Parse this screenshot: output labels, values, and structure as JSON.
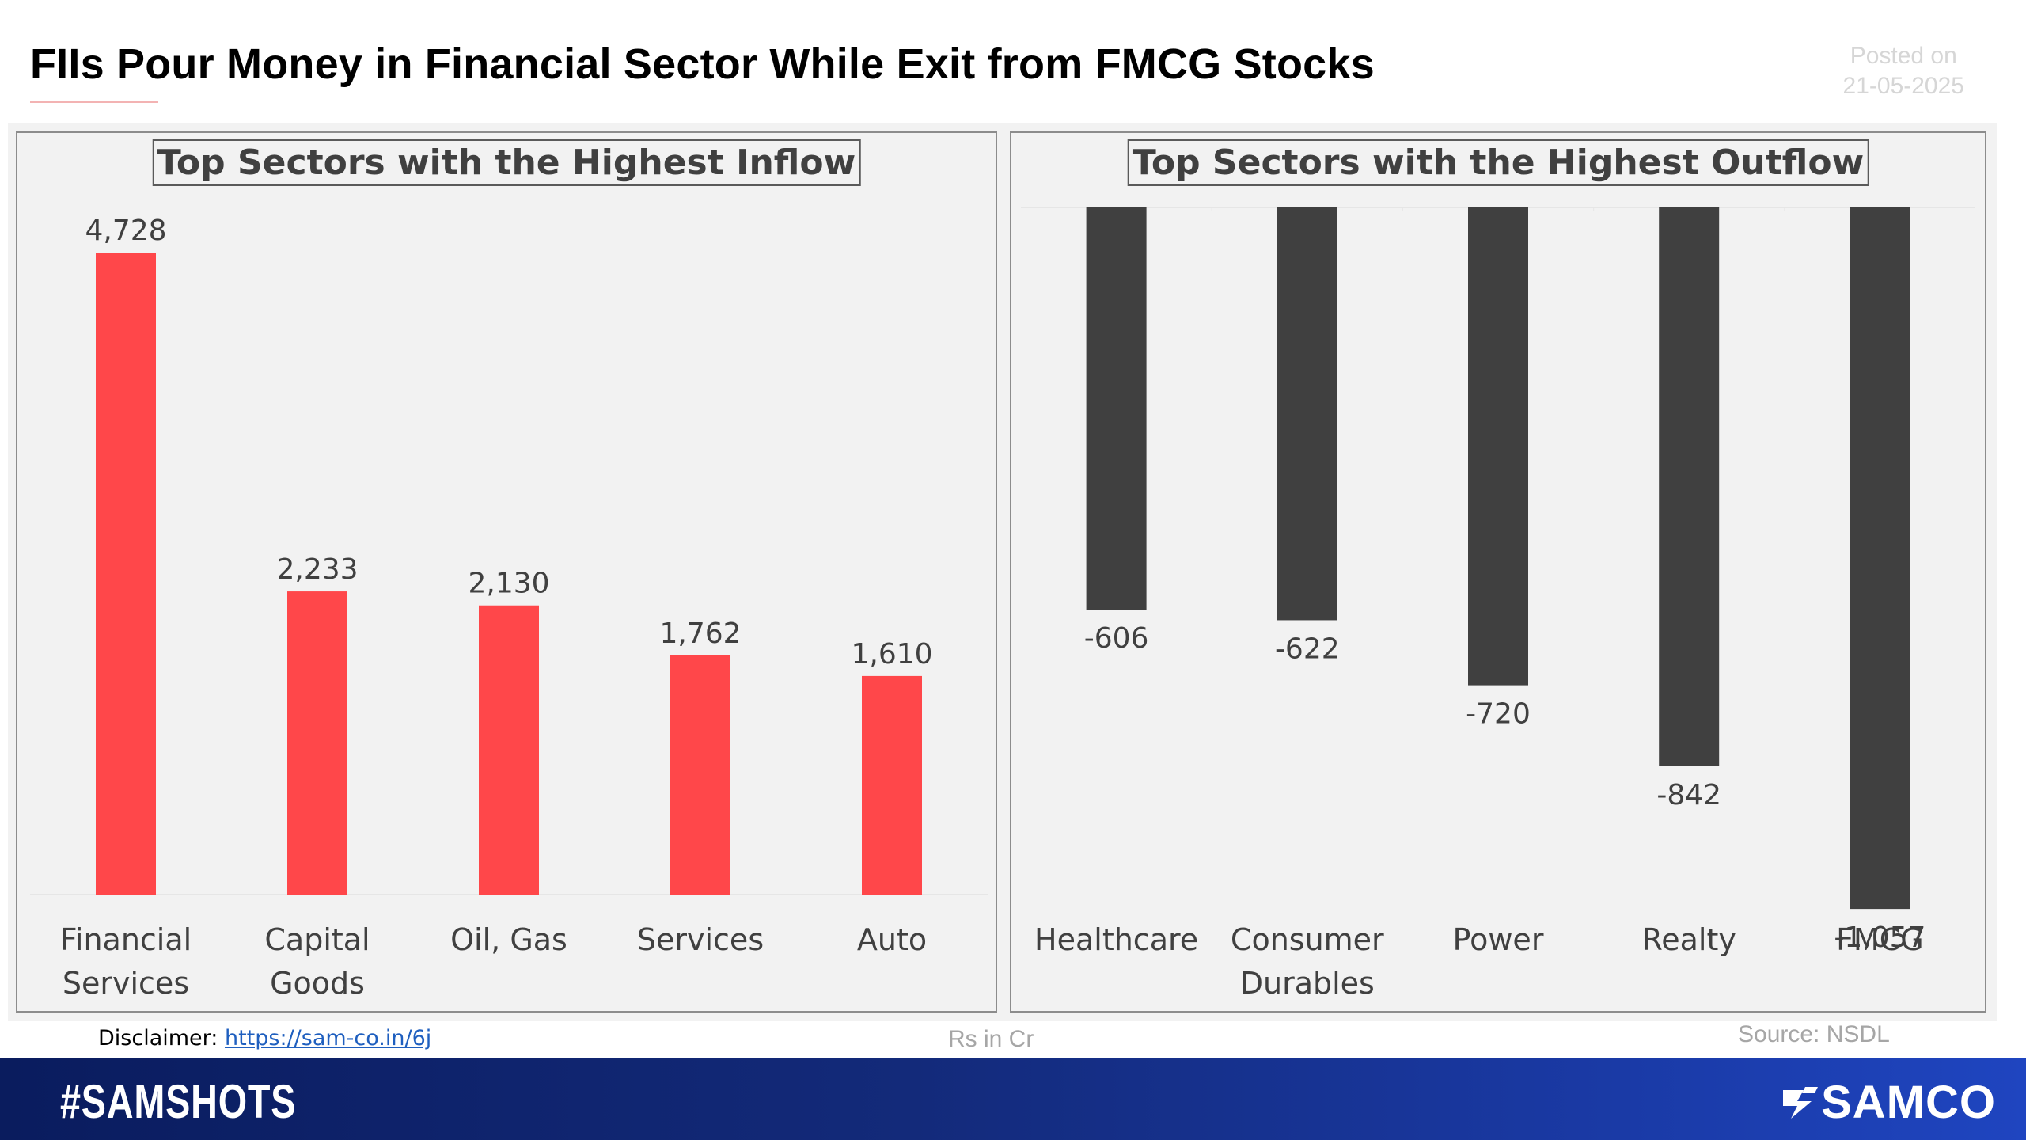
{
  "title": "FIIs Pour Money in Financial Sector While Exit from FMCG Stocks",
  "posted": {
    "label": "Posted on",
    "date": "21-05-2025"
  },
  "chart_data": [
    {
      "type": "bar",
      "title": "Top Sectors with the Highest Inflow",
      "categories": [
        [
          "Financial",
          "Services"
        ],
        [
          "Capital",
          "Goods"
        ],
        [
          "Oil, Gas"
        ],
        [
          "Services"
        ],
        [
          "Auto"
        ]
      ],
      "values": [
        4728,
        2233,
        2130,
        1762,
        1610
      ],
      "labels": [
        "4,728",
        "2,233",
        "2,130",
        "1,762",
        "1,610"
      ],
      "ylim": [
        0,
        4980
      ],
      "color": "#ff474a",
      "grid": false,
      "legend": "none"
    },
    {
      "type": "bar",
      "title": "Top Sectors with the Highest Outflow",
      "categories": [
        [
          "Healthcare"
        ],
        [
          "Consumer",
          "Durables"
        ],
        [
          "Power"
        ],
        [
          "Realty"
        ],
        [
          "FMCG"
        ]
      ],
      "values": [
        -606,
        -622,
        -720,
        -842,
        -1057
      ],
      "labels": [
        "-606",
        "-622",
        "-720",
        "-842",
        "-1,057"
      ],
      "ylim": [
        -1200,
        0
      ],
      "color": "#404040",
      "grid": true,
      "legend": "none"
    }
  ],
  "footer": {
    "disclaimer_label": "Disclaimer:",
    "disclaimer_link": "https://sam-co.in/6j",
    "units": "Rs in Cr",
    "source": "Source: NSDL"
  },
  "banner": {
    "hashtag": "#SAMSHOTS",
    "brand": "SAMCO"
  },
  "colors": {
    "inflow": "#ff474a",
    "outflow": "#404040",
    "banner_start": "#0a1c5e",
    "banner_end": "#1f45c0"
  },
  "icons": {
    "brand_logo": "samco-s-logo-icon"
  }
}
